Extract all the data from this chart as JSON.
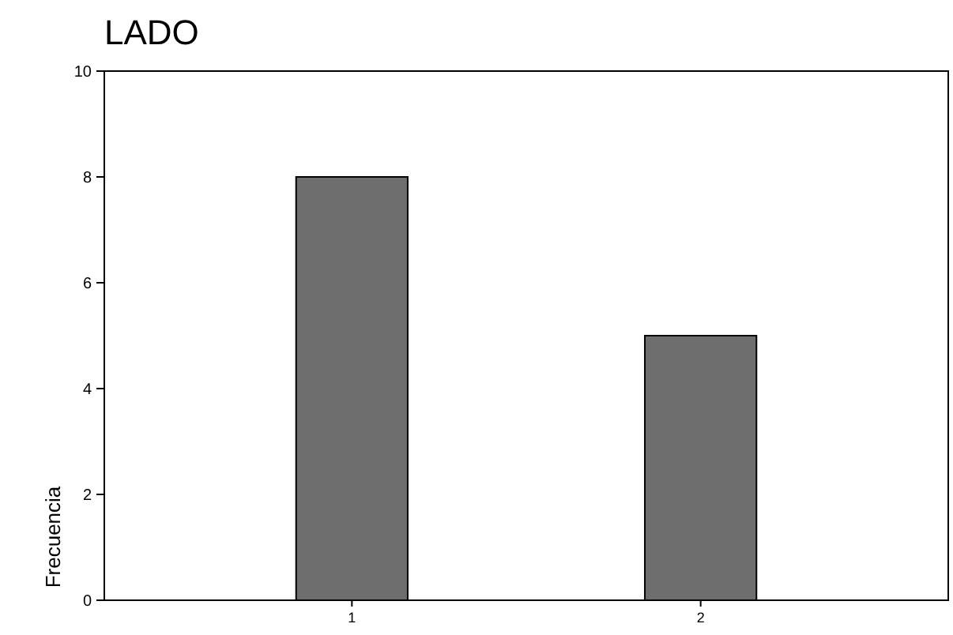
{
  "chart_data": {
    "type": "bar",
    "title": "LADO",
    "ylabel": "Frecuencia",
    "categories": [
      "1",
      "2"
    ],
    "values": [
      8,
      5
    ],
    "color": "#6e6e6e",
    "ylim": [
      0,
      10
    ],
    "yticks": [
      0,
      2,
      4,
      6,
      8,
      10
    ],
    "grid": false
  }
}
